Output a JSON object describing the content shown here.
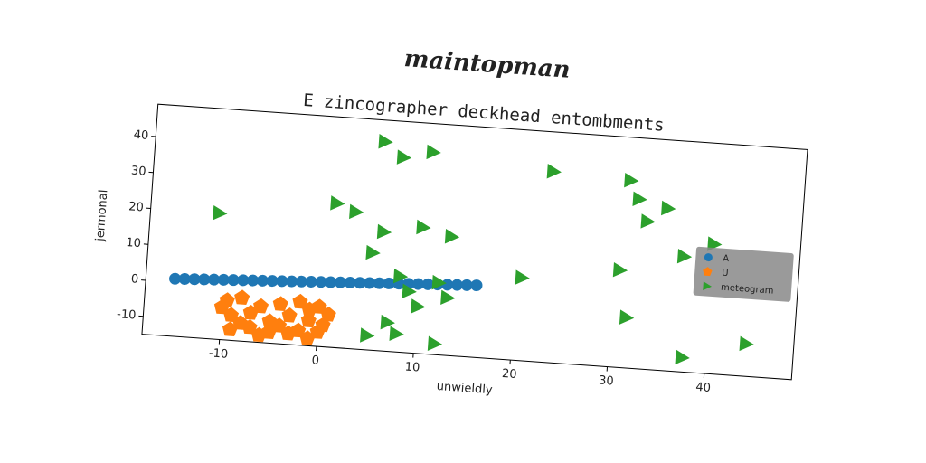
{
  "chart_data": {
    "type": "scatter",
    "suptitle": "maintopman",
    "title": "E zincographer deckhead entombments",
    "xlabel": "unwieldly",
    "ylabel": "jermonal",
    "xlim": [
      -18,
      49
    ],
    "ylim": [
      -15,
      49
    ],
    "xticks": [
      -10,
      0,
      10,
      20,
      30,
      40
    ],
    "yticks": [
      -10,
      0,
      10,
      20,
      30,
      40
    ],
    "grid": false,
    "legend": "center right",
    "series": [
      {
        "name": "A",
        "color": "#1f77b4",
        "marker": "o",
        "x": [
          -15,
          -14,
          -13,
          -12,
          -11,
          -10,
          -9,
          -8,
          -7,
          -6,
          -5,
          -4,
          -3,
          -2,
          -1,
          0,
          1,
          2,
          3,
          4,
          5,
          6,
          7,
          8,
          9,
          10,
          11,
          12,
          13,
          14,
          15,
          16
        ],
        "y": [
          1.0,
          1.13,
          1.26,
          1.39,
          1.52,
          1.65,
          1.77,
          1.9,
          2.03,
          2.16,
          2.29,
          2.42,
          2.55,
          2.68,
          2.81,
          2.94,
          3.06,
          3.19,
          3.32,
          3.45,
          3.58,
          3.71,
          3.84,
          3.97,
          4.1,
          4.23,
          4.35,
          4.48,
          4.61,
          4.74,
          4.87,
          5.0
        ]
      },
      {
        "name": "U",
        "color": "#ff7f0e",
        "marker": "p",
        "x": [
          -9.5,
          -8,
          -6,
          -4,
          -2,
          0,
          1,
          -9,
          -7,
          -5,
          -3,
          -1,
          0.5,
          -9,
          -7,
          -5,
          -3,
          -1,
          0,
          -8,
          -4,
          -2,
          -6,
          -10,
          -1
        ],
        "y": [
          -4,
          -3,
          -5,
          -4,
          -3,
          -4,
          -6,
          -8,
          -7,
          -9,
          -7,
          -8,
          -9,
          -12,
          -11,
          -12,
          -12,
          -13,
          -11,
          -10,
          -10,
          -11,
          -13,
          -6,
          -5
        ]
      },
      {
        "name": "meteogram",
        "color": "#2ca02c",
        "marker": ">",
        "x": [
          5.5,
          7.5,
          10.5,
          23,
          31,
          32,
          35,
          33,
          40,
          37,
          30.5,
          20.5,
          31.5,
          44,
          37.5,
          1,
          3,
          6,
          10,
          13,
          5,
          8,
          9,
          10,
          12,
          13,
          7,
          8,
          5,
          12,
          -11
        ],
        "y": [
          43,
          39,
          41,
          38,
          37,
          32,
          30,
          26,
          21,
          17,
          12,
          8,
          -1,
          -6,
          -11,
          25,
          23,
          18,
          20,
          18,
          12,
          6,
          2,
          -2,
          5,
          1,
          -7,
          -10,
          -11,
          -12,
          20
        ]
      }
    ]
  }
}
